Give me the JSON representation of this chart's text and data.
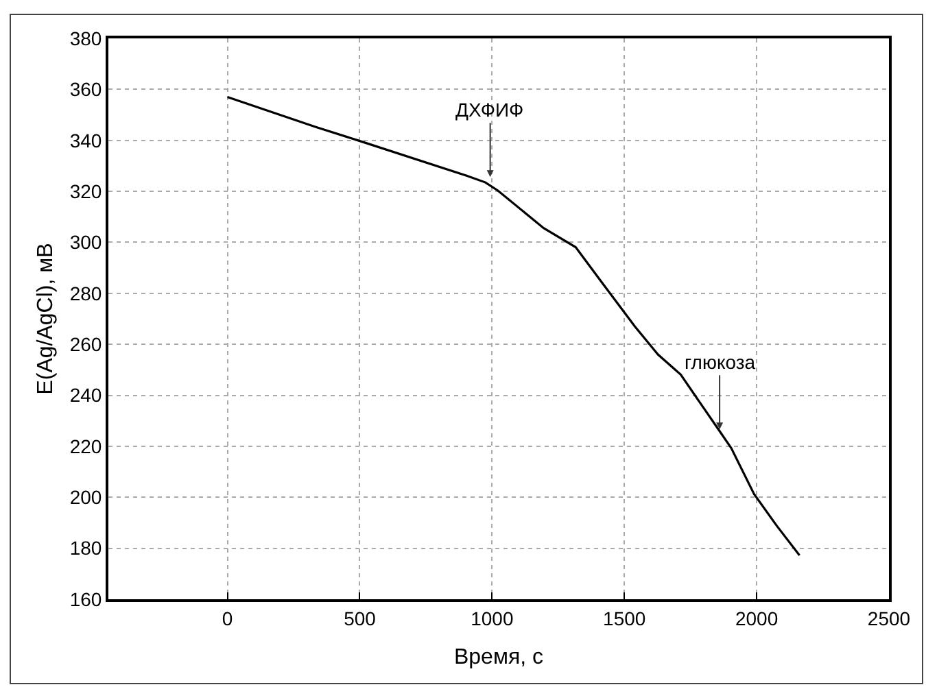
{
  "chart_data": {
    "type": "line",
    "xlabel": "Время, с",
    "ylabel": "E(Ag/AgCl), мВ",
    "x": [
      0,
      332,
      496,
      902,
      975,
      1022,
      1195,
      1316,
      1420,
      1540,
      1627,
      1713,
      1851,
      1904,
      1990,
      2076,
      2162
    ],
    "series": [
      {
        "color": "#000000",
        "values": [
          357,
          345.3,
          339.9,
          326.2,
          323.5,
          320.3,
          305.6,
          298.1,
          283.6,
          267,
          256,
          248.1,
          227.3,
          219.3,
          201.3,
          188.8,
          177.2
        ]
      }
    ],
    "xlim": [
      -450,
      2500
    ],
    "xticks": [
      0,
      500,
      1000,
      1500,
      2000,
      2500
    ],
    "ylim": [
      160,
      380
    ],
    "yticks": [
      160,
      180,
      200,
      220,
      240,
      260,
      280,
      300,
      320,
      340,
      360,
      380
    ],
    "grid": true,
    "marker": "none",
    "line_style": "solid",
    "annotations": [
      {
        "text": "ДХФИФ",
        "x": 993,
        "y": 324
      },
      {
        "text": "глюкоза",
        "x": 1860,
        "y": 225
      }
    ]
  }
}
